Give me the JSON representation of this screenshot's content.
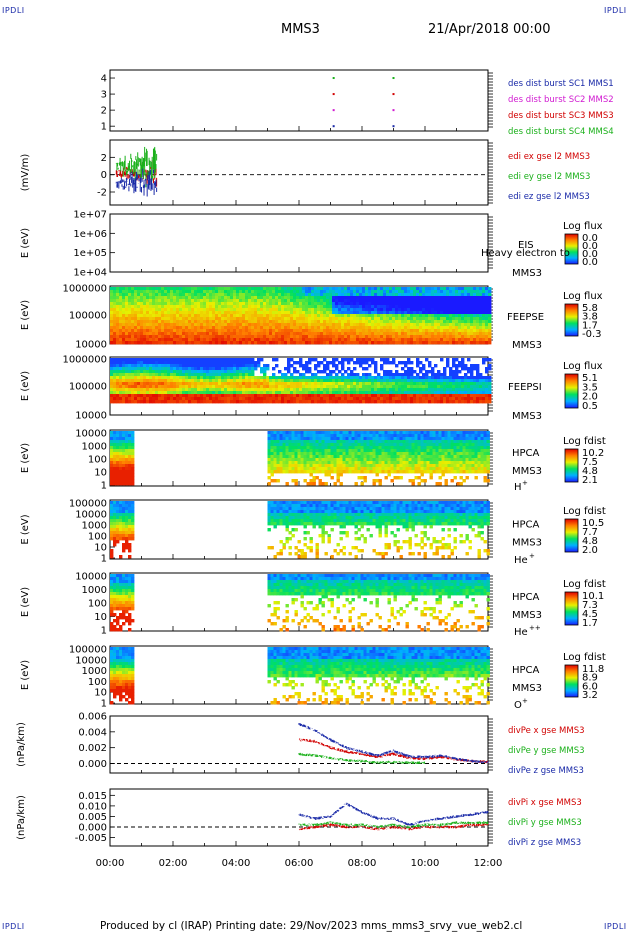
{
  "header": {
    "corner_label": "IPDLI",
    "spacecraft": "MMS3",
    "date_time": "21/Apr/2018 00:00"
  },
  "footer": {
    "text": "Produced by cl (IRAP)   Printing date: 29/Nov/2023   mms_mms3_srvy_vue_web2.cl"
  },
  "colors": {
    "sc1": "#1a2aa8",
    "sc2": "#d11ad1",
    "sc3": "#d10000",
    "sc4": "#1ab01a",
    "edi_x": "#d10000",
    "edi_y": "#1ab01a",
    "edi_z": "#1a2aa8"
  },
  "chart_data": [
    {
      "type": "scatter",
      "panel": "burst-availability",
      "yticks": [
        "1",
        "2",
        "3",
        "4"
      ],
      "ylim": [
        0.7,
        4.5
      ],
      "xlim": [
        0,
        12
      ],
      "legend": [
        "des dist burst SC1 MMS1",
        "des dist burst SC2 MMS2",
        "des dist burst SC3 MMS3",
        "des dist burst SC4 MMS4"
      ],
      "series": [
        {
          "name": "des dist burst SC1 MMS1",
          "x": [
            7.1,
            9.0
          ],
          "y": [
            1,
            1
          ]
        },
        {
          "name": "des dist burst SC2 MMS2",
          "x": [
            7.1,
            9.0
          ],
          "y": [
            2,
            2
          ]
        },
        {
          "name": "des dist burst SC3 MMS3",
          "x": [
            7.1,
            9.0
          ],
          "y": [
            3,
            3
          ]
        },
        {
          "name": "des dist burst SC4 MMS4",
          "x": [
            7.1,
            9.0
          ],
          "y": [
            4,
            4
          ]
        }
      ]
    },
    {
      "type": "line",
      "panel": "edi-e-field",
      "ylabel": "(mV/m)",
      "yticks": [
        "-2",
        "0",
        "2"
      ],
      "ylim": [
        -3.5,
        4
      ],
      "xlim": [
        0,
        12
      ],
      "x_range": [
        0.2,
        1.5
      ],
      "legend": [
        "edi ex gse l2 MMS3",
        "edi ey gse l2 MMS3",
        "edi ez gse l2 MMS3"
      ],
      "dashed_zero": true
    },
    {
      "type": "heatmap",
      "panel": "eis",
      "ylabel": "E (eV)",
      "yticks": [
        "1e+04",
        "1e+05",
        "1e+06",
        "1e+07"
      ],
      "instrument": "EIS",
      "overlay_text": "Heavy electron to",
      "spacecraft": "MMS3",
      "colorbar_title": "Log flux",
      "colorbar_ticks": [
        "0.0",
        "0.0",
        "0.0",
        "0.0"
      ],
      "data_present": false
    },
    {
      "type": "heatmap",
      "panel": "feeps-electron",
      "ylabel": "E (eV)",
      "yticks": [
        "10000",
        "100000",
        "1000000"
      ],
      "instrument": "FEEPSE",
      "spacecraft": "MMS3",
      "colorbar_title": "Log flux",
      "colorbar_ticks": [
        "5.8",
        "3.8",
        "1.7",
        "-0.3"
      ],
      "x_range": [
        0,
        12
      ]
    },
    {
      "type": "heatmap",
      "panel": "feeps-ion",
      "ylabel": "E (eV)",
      "yticks": [
        "10000",
        "100000",
        "1000000"
      ],
      "instrument": "FEEPSI",
      "spacecraft": "MMS3",
      "colorbar_title": "Log flux",
      "colorbar_ticks": [
        "5.1",
        "3.5",
        "2.0",
        "0.5"
      ],
      "x_range": [
        0,
        12
      ]
    },
    {
      "type": "heatmap",
      "panel": "hpca-h",
      "ylabel": "E (eV)",
      "yticks": [
        "1",
        "10",
        "100",
        "1000",
        "10000"
      ],
      "instrument": "HPCA",
      "spacecraft": "MMS3",
      "species": "H",
      "species_sup": "+",
      "colorbar_title": "Log fdist",
      "colorbar_ticks": [
        "10.2",
        "7.5",
        "4.8",
        "2.1"
      ],
      "x_ranges": [
        [
          0,
          0.75
        ],
        [
          5.0,
          12
        ]
      ]
    },
    {
      "type": "heatmap",
      "panel": "hpca-he",
      "ylabel": "E (eV)",
      "yticks": [
        "1",
        "10",
        "100",
        "1000",
        "10000",
        "100000"
      ],
      "instrument": "HPCA",
      "spacecraft": "MMS3",
      "species": "He",
      "species_sup": "+",
      "colorbar_title": "Log fdist",
      "colorbar_ticks": [
        "10.5",
        "7.7",
        "4.8",
        "2.0"
      ],
      "x_ranges": [
        [
          0,
          0.75
        ],
        [
          5.0,
          12
        ]
      ]
    },
    {
      "type": "heatmap",
      "panel": "hpca-he2",
      "ylabel": "E (eV)",
      "yticks": [
        "1",
        "10",
        "100",
        "1000",
        "10000"
      ],
      "instrument": "HPCA",
      "spacecraft": "MMS3",
      "species": "He",
      "species_sup": "++",
      "colorbar_title": "Log fdist",
      "colorbar_ticks": [
        "10.1",
        "7.3",
        "4.5",
        "1.7"
      ],
      "x_ranges": [
        [
          0,
          0.75
        ],
        [
          5.0,
          12
        ]
      ]
    },
    {
      "type": "heatmap",
      "panel": "hpca-o",
      "ylabel": "E (eV)",
      "yticks": [
        "1",
        "10",
        "100",
        "1000",
        "10000",
        "100000"
      ],
      "instrument": "HPCA",
      "spacecraft": "MMS3",
      "species": "O",
      "species_sup": "+",
      "colorbar_title": "Log fdist",
      "colorbar_ticks": [
        "11.8",
        "8.9",
        "6.0",
        "3.2"
      ],
      "x_ranges": [
        [
          0,
          0.75
        ],
        [
          5.0,
          12
        ]
      ]
    },
    {
      "type": "line",
      "panel": "div-pe",
      "ylabel": "(nPa/km)",
      "yticks": [
        "0.000",
        "0.002",
        "0.004",
        "0.006"
      ],
      "ylim": [
        -0.0012,
        0.006
      ],
      "xlim": [
        0,
        12
      ],
      "legend": [
        "divPe x gse MMS3",
        "divPe y gse MMS3",
        "divPe z gse MMS3"
      ],
      "dashed_zero": true,
      "series": [
        {
          "name": "divPe x gse MMS3",
          "x": [
            6.0,
            6.5,
            7.0,
            7.5,
            8.0,
            8.5,
            9.0,
            9.5,
            10.0,
            10.5,
            11.0,
            11.5,
            12.0
          ],
          "y": [
            0.003,
            0.0028,
            0.002,
            0.0015,
            0.0012,
            0.0008,
            0.0012,
            0.0007,
            0.0006,
            0.0008,
            0.0005,
            0.0003,
            0.0002
          ]
        },
        {
          "name": "divPe y gse MMS3",
          "x": [
            6.0,
            6.5,
            7.0,
            7.5,
            8.0,
            8.5,
            9.0,
            9.5,
            10.0
          ],
          "y": [
            0.0012,
            0.001,
            0.0007,
            0.0004,
            0.0003,
            0.0001,
            0.0002,
            0.0001,
            0.0001
          ]
        },
        {
          "name": "divPe z gse MMS3",
          "x": [
            6.0,
            6.5,
            7.0,
            7.5,
            8.0,
            8.5,
            9.0,
            9.5,
            10.0,
            10.5,
            11.0,
            11.5,
            12.0
          ],
          "y": [
            0.005,
            0.0042,
            0.003,
            0.002,
            0.0015,
            0.001,
            0.0016,
            0.0009,
            0.0008,
            0.001,
            0.0006,
            0.0003,
            0.0001
          ]
        }
      ]
    },
    {
      "type": "line",
      "panel": "div-pi",
      "ylabel": "(nPa/km)",
      "yticks": [
        "-0.005",
        "0.000",
        "0.005",
        "0.010",
        "0.015"
      ],
      "ylim": [
        -0.009,
        0.018
      ],
      "xlim": [
        0,
        12
      ],
      "legend": [
        "divPi x gse MMS3",
        "divPi y gse MMS3",
        "divPi z gse MMS3"
      ],
      "dashed_zero": true,
      "series": [
        {
          "name": "divPi x gse MMS3",
          "x": [
            6.0,
            6.5,
            7.0,
            7.5,
            8.0,
            8.5,
            9.0,
            9.5,
            10.0,
            10.5,
            11.0,
            11.5,
            12.0
          ],
          "y": [
            -0.001,
            0.0,
            0.001,
            0.0,
            0.0,
            -0.001,
            0.0,
            -0.001,
            0.0,
            0.0,
            0.0,
            0.001,
            0.001
          ]
        },
        {
          "name": "divPi y gse MMS3",
          "x": [
            6.0,
            6.5,
            7.0,
            7.5,
            8.0,
            8.5,
            9.0,
            9.5,
            10.0,
            10.5,
            11.0,
            11.5,
            12.0
          ],
          "y": [
            0.001,
            0.001,
            0.002,
            0.001,
            0.001,
            0.0,
            0.001,
            0.0,
            0.001,
            0.001,
            0.002,
            0.002,
            0.002
          ]
        },
        {
          "name": "divPi z gse MMS3",
          "x": [
            6.0,
            6.5,
            7.0,
            7.5,
            8.0,
            8.5,
            9.0,
            9.5,
            10.0,
            10.5,
            11.0,
            11.5,
            12.0
          ],
          "y": [
            0.006,
            0.004,
            0.005,
            0.011,
            0.007,
            0.004,
            0.004,
            0.001,
            0.003,
            0.004,
            0.005,
            0.006,
            0.007
          ]
        }
      ]
    }
  ],
  "x_axis": {
    "ticks": [
      "00:00",
      "02:00",
      "04:00",
      "06:00",
      "08:00",
      "10:00",
      "12:00"
    ],
    "xlim": [
      0,
      12
    ]
  }
}
